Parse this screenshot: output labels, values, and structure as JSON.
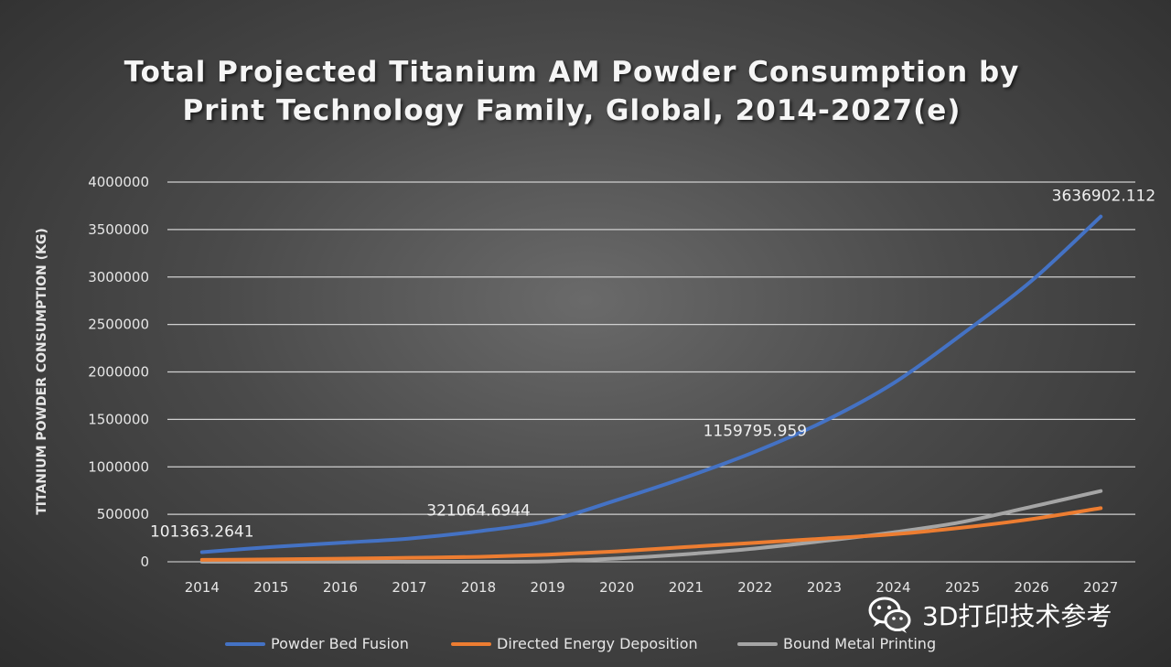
{
  "chart_data": {
    "type": "line",
    "title_lines": [
      "Total Projected Titanium AM Powder Consumption by",
      "Print Technology Family, Global, 2014-2027(e)"
    ],
    "ylabel": "TITANIUM  POWDER CONSUMPTION  (KG)",
    "xlabel": "",
    "categories": [
      "2014",
      "2015",
      "2016",
      "2017",
      "2018",
      "2019",
      "2020",
      "2021",
      "2022",
      "2023",
      "2024",
      "2025",
      "2026",
      "2027"
    ],
    "ylim": [
      0,
      4000000
    ],
    "yticks": [
      "0",
      "500000",
      "1000000",
      "1500000",
      "2000000",
      "2500000",
      "3000000",
      "3500000",
      "4000000"
    ],
    "grid": true,
    "legend_position": "bottom",
    "series": [
      {
        "name": "Powder Bed Fusion",
        "color": "#4472c4",
        "values": [
          101363.2641,
          155000,
          200000,
          245000,
          321064.6944,
          430000,
          650000,
          890000,
          1159795.959,
          1480000,
          1880000,
          2400000,
          2960000,
          3636902.112
        ]
      },
      {
        "name": "Directed Energy Deposition",
        "color": "#ed7d31",
        "values": [
          20000,
          25000,
          32000,
          42000,
          52000,
          75000,
          110000,
          155000,
          200000,
          245000,
          290000,
          360000,
          450000,
          565000
        ]
      },
      {
        "name": "Bound Metal Printing",
        "color": "#a5a5a5",
        "values": [
          0,
          0,
          0,
          0,
          0,
          5000,
          35000,
          80000,
          140000,
          220000,
          310000,
          420000,
          580000,
          745000
        ]
      }
    ],
    "data_labels": [
      {
        "series": 0,
        "index": 0,
        "text": "101363.2641"
      },
      {
        "series": 0,
        "index": 4,
        "text": "321064.6944"
      },
      {
        "series": 0,
        "index": 8,
        "text": "1159795.959"
      },
      {
        "series": 0,
        "index": 13,
        "text": "3636902.112"
      }
    ]
  },
  "watermark": {
    "text": "3D打印技术参考",
    "icon": "wechat-icon"
  }
}
